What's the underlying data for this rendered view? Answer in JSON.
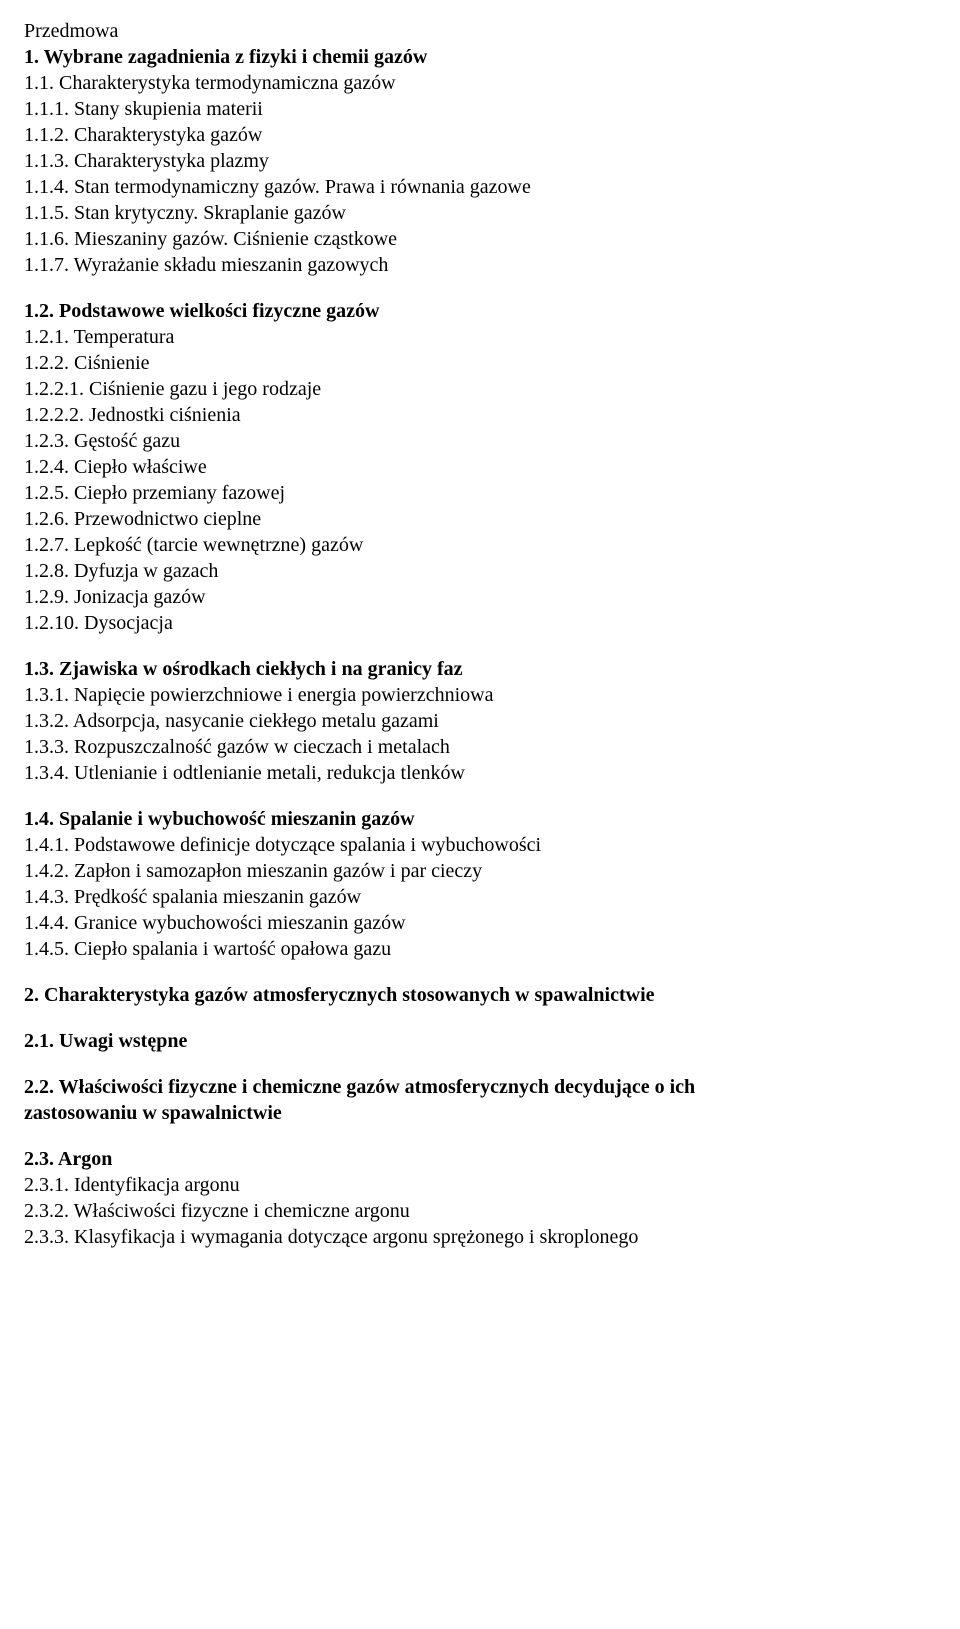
{
  "preface": "Przedmowa",
  "s1": {
    "heading": "1. Wybrane zagadnienia z fizyki i chemii gazów",
    "i1": "1.1. Charakterystyka termodynamiczna gazów",
    "i2": "1.1.1. Stany skupienia materii",
    "i3": "1.1.2. Charakterystyka gazów",
    "i4": "1.1.3. Charakterystyka plazmy",
    "i5": "1.1.4. Stan termodynamiczny gazów. Prawa i równania gazowe",
    "i6": "1.1.5. Stan krytyczny. Skraplanie gazów",
    "i7": "1.1.6. Mieszaniny gazów. Ciśnienie cząstkowe",
    "i8": "1.1.7. Wyrażanie składu mieszanin gazowych"
  },
  "s1_2": {
    "heading": "1.2. Podstawowe wielkości fizyczne gazów",
    "i1": "1.2.1. Temperatura",
    "i2": "1.2.2. Ciśnienie",
    "i3": "1.2.2.1. Ciśnienie gazu i jego rodzaje",
    "i4": "1.2.2.2. Jednostki ciśnienia",
    "i5": "1.2.3. Gęstość gazu",
    "i6": "1.2.4. Ciepło właściwe",
    "i7": "1.2.5. Ciepło przemiany fazowej",
    "i8": "1.2.6. Przewodnictwo cieplne",
    "i9": "1.2.7. Lepkość (tarcie wewnętrzne) gazów",
    "i10": "1.2.8. Dyfuzja w gazach",
    "i11": "1.2.9. Jonizacja gazów",
    "i12": "1.2.10. Dysocjacja"
  },
  "s1_3": {
    "heading": "1.3. Zjawiska w ośrodkach ciekłych i na granicy faz",
    "i1": "1.3.1. Napięcie powierzchniowe i energia powierzchniowa",
    "i2": "1.3.2. Adsorpcja, nasycanie ciekłego metalu gazami",
    "i3": "1.3.3. Rozpuszczalność gazów w cieczach i metalach",
    "i4": "1.3.4. Utlenianie i odtlenianie metali, redukcja tlenków"
  },
  "s1_4": {
    "heading": "1.4. Spalanie i wybuchowość mieszanin gazów",
    "i1": "1.4.1. Podstawowe definicje dotyczące spalania i wybuchowości",
    "i2": "1.4.2. Zapłon i samozapłon mieszanin gazów i par cieczy",
    "i3": "1.4.3. Prędkość spalania mieszanin gazów",
    "i4": "1.4.4. Granice wybuchowości mieszanin gazów",
    "i5": "1.4.5. Ciepło spalania i wartość opałowa gazu"
  },
  "s2": {
    "heading": "2. Charakterystyka gazów atmosferycznych stosowanych w spawalnictwie"
  },
  "s2_1": {
    "heading": "2.1. Uwagi wstępne"
  },
  "s2_2": {
    "heading_l1": "2.2. Właściwości fizyczne i chemiczne gazów atmosferycznych decydujące o ich",
    "heading_l2": "zastosowaniu w spawalnictwie"
  },
  "s2_3": {
    "heading": "2.3. Argon",
    "i1": "2.3.1. Identyfikacja argonu",
    "i2": "2.3.2. Właściwości fizyczne i chemiczne argonu",
    "i3": "2.3.3. Klasyfikacja i wymagania dotyczące argonu sprężonego i skroplonego"
  }
}
